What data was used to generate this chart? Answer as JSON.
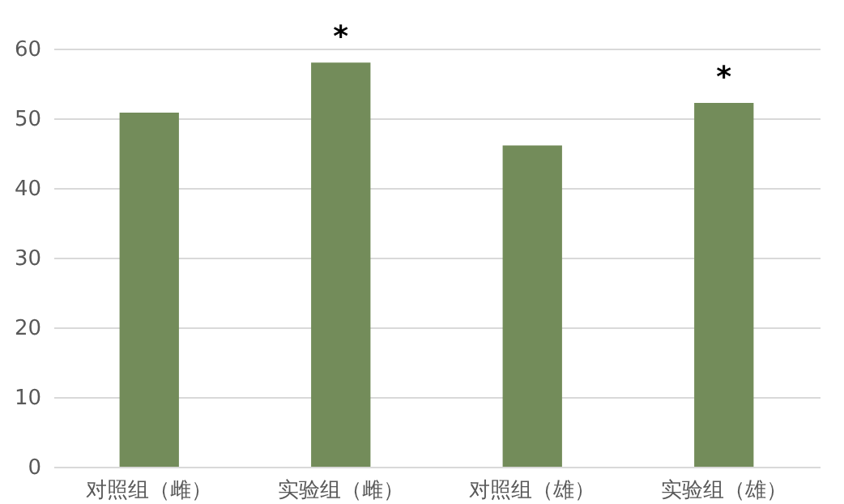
{
  "chart_data": {
    "type": "bar",
    "categories": [
      "对照组（雌）",
      "实验组（雌）",
      "对照组（雄）",
      "实验组（雄）"
    ],
    "values": [
      50.8,
      58,
      46.1,
      52.2
    ],
    "color": "#738c5a",
    "ylim": [
      0,
      60
    ],
    "yticks": [
      0,
      10,
      20,
      30,
      40,
      50,
      60
    ],
    "grid": "y",
    "annotations": [
      {
        "text": "*",
        "x": "实验组（雌）",
        "y": 58
      },
      {
        "text": "*",
        "x": "实验组（雄）",
        "y": 52.2
      }
    ]
  }
}
